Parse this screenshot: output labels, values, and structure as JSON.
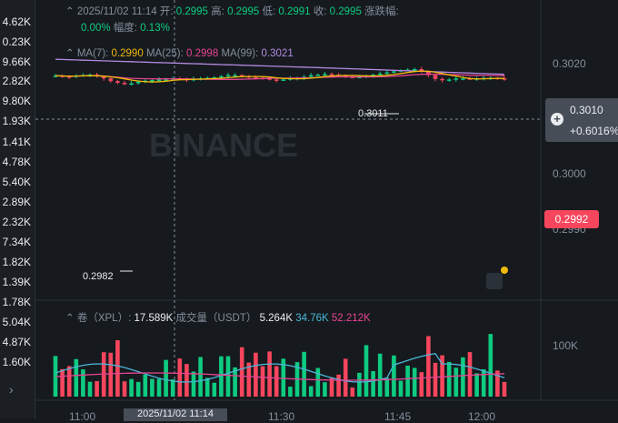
{
  "left_values": [
    "4.62K",
    "0.23K",
    "9.66K",
    "2.82K",
    "9.80K",
    "1.93K",
    "1.41K",
    "4.78K",
    "5.40K",
    "2.89K",
    "2.32K",
    "7.34K",
    "1.82K",
    "1.39K",
    "1.78K",
    "5.04K",
    "4.87K",
    "1.60K"
  ],
  "ohlc": {
    "datetime": "2025/11/02 11:14",
    "open_label": "开:",
    "open": "0.2995",
    "high_label": "高:",
    "high": "0.2995",
    "low_label": "低:",
    "low": "0.2991",
    "close_label": "收:",
    "close": "0.2995",
    "change_label": "涨跌幅:",
    "change": "0.00%",
    "range_label": "幅度:",
    "range": "0.13%"
  },
  "ma": {
    "ma7_label": "MA(7):",
    "ma7": "0.2990",
    "ma25_label": "MA(25):",
    "ma25": "0.2998",
    "ma99_label": "MA(99):",
    "ma99": "0.3021"
  },
  "price_axis": {
    "p3020": "0.3020",
    "p3000": "0.3000",
    "p2990": "0.2990"
  },
  "price_tag": {
    "price": "0.3010",
    "change": "+0.6016%"
  },
  "current_price": "0.2992",
  "high_marker": "0.3011",
  "low_marker": "0.2982",
  "volume": {
    "label": "卷（XPL）:",
    "value": "17.589K",
    "vol_label": "成交量（USDT）",
    "v1": "5.264K",
    "v2": "34.76K",
    "v3": "52.212K",
    "axis_100k": "100K"
  },
  "time_axis": [
    "11:00",
    "11:30",
    "11:45",
    "12:00"
  ],
  "crosshair_time": "2025/11/02 11:14",
  "watermark": "BINANCE",
  "colors": {
    "up": "#0ecb81",
    "down": "#f6465d",
    "ma7": "#f0b90b",
    "ma25": "#e84393",
    "ma99": "#b48ae0",
    "bg": "#161a1e"
  }
}
